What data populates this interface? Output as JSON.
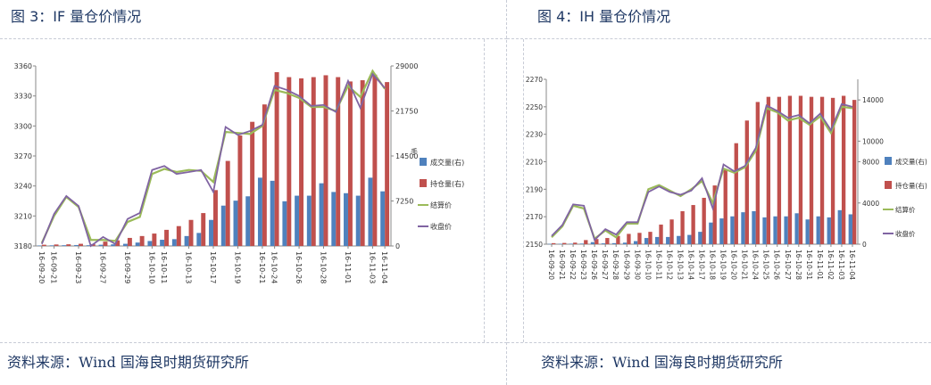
{
  "left_title": "图 3：IF 量仓价情况",
  "right_title": "图 4：IH 量仓价情况",
  "left_source": "资料来源：Wind 国海良时期货研究所",
  "right_source": "资料来源：Wind 国海良时期货研究所",
  "colors": {
    "volume": "#4f81bd",
    "oi": "#c0504d",
    "settle": "#9bbb59",
    "close": "#8064a2"
  },
  "chart_data": [
    {
      "type": "bar",
      "title": "",
      "categories": [
        "16-09-20",
        "16-09-21",
        "16-09-22",
        "16-09-23",
        "16-09-26",
        "16-09-27",
        "16-09-28",
        "16-09-29",
        "16-09-30",
        "16-10-10",
        "16-10-11",
        "16-10-12",
        "16-10-13",
        "16-10-14",
        "16-10-17",
        "16-10-18",
        "16-10-19",
        "16-10-20",
        "16-10-21",
        "16-10-24",
        "16-10-25",
        "16-10-26",
        "16-10-27",
        "16-10-28",
        "16-10-31",
        "16-11-01",
        "16-11-02",
        "16-11-03",
        "16-11-04"
      ],
      "x_tick_labels": [
        "16-09-20",
        "16-09-21",
        "16-09-23",
        "16-09-27",
        "16-09-29",
        "16-10-10",
        "16-10-11",
        "16-10-13",
        "16-10-17",
        "16-10-19",
        "16-10-21",
        "16-10-24",
        "16-10-26",
        "16-10-28",
        "16-11-01",
        "16-11-03",
        "16-11-04"
      ],
      "ylim_left": [
        3180,
        3360
      ],
      "left_ticks": [
        "3180",
        "3210",
        "3240",
        "3270",
        "3300",
        "3330",
        "3360"
      ],
      "ylim_right": [
        0,
        29000
      ],
      "right_ticks": [
        "0",
        "7250",
        "14500",
        "21750",
        "29000"
      ],
      "right_axis_label": "手",
      "legend": [
        "成交量(右)",
        "持仓量(右)",
        "结算价",
        "收盘价"
      ],
      "series": [
        {
          "name": "成交量(右)",
          "axis": "right",
          "kind": "bar",
          "values": [
            80,
            100,
            120,
            150,
            120,
            200,
            260,
            350,
            550,
            800,
            1000,
            1100,
            1600,
            2100,
            4200,
            6500,
            7300,
            8000,
            11000,
            10500,
            7200,
            8100,
            8100,
            10100,
            8700,
            8500,
            8100,
            11000,
            8800
          ]
        },
        {
          "name": "持仓量(右)",
          "axis": "right",
          "kind": "bar",
          "values": [
            200,
            240,
            270,
            350,
            300,
            700,
            900,
            1300,
            1600,
            2000,
            2600,
            3200,
            4200,
            5300,
            9000,
            13700,
            17800,
            20000,
            22800,
            28000,
            27200,
            27000,
            27200,
            27500,
            27200,
            26500,
            26700,
            27600,
            26400
          ]
        },
        {
          "name": "结算价",
          "axis": "left",
          "kind": "line",
          "values": [
            3183,
            3210,
            3229,
            3219,
            3186,
            3186,
            3185,
            3204,
            3209,
            3252,
            3257,
            3254,
            3256,
            3255,
            3244,
            3294,
            3293,
            3292,
            3300,
            3336,
            3333,
            3328,
            3319,
            3319,
            3315,
            3340,
            3329,
            3355,
            3337
          ]
        },
        {
          "name": "收盘价",
          "axis": "left",
          "kind": "line",
          "values": [
            3182,
            3212,
            3230,
            3220,
            3180,
            3189,
            3182,
            3207,
            3213,
            3256,
            3260,
            3252,
            3254,
            3256,
            3234,
            3299,
            3291,
            3295,
            3301,
            3340,
            3336,
            3330,
            3320,
            3321,
            3314,
            3345,
            3318,
            3352,
            3338
          ]
        }
      ]
    },
    {
      "type": "bar",
      "title": "",
      "categories": [
        "16-09-20",
        "16-09-21",
        "16-09-22",
        "16-09-23",
        "16-09-26",
        "16-09-27",
        "16-09-28",
        "16-09-29",
        "16-09-30",
        "16-10-10",
        "16-10-11",
        "16-10-12",
        "16-10-13",
        "16-10-14",
        "16-10-17",
        "16-10-18",
        "16-10-19",
        "16-10-20",
        "16-10-21",
        "16-10-24",
        "16-10-25",
        "16-10-26",
        "16-10-27",
        "16-10-28",
        "16-10-31",
        "16-11-01",
        "16-11-02",
        "16-11-03",
        "16-11-04"
      ],
      "x_tick_labels": [
        "16-09-20",
        "16-09-21",
        "16-09-22",
        "16-09-23",
        "16-09-26",
        "16-09-27",
        "16-09-28",
        "16-09-29",
        "16-09-30",
        "16-10-10",
        "16-10-11",
        "16-10-12",
        "16-10-13",
        "16-10-14",
        "16-10-17",
        "16-10-18",
        "16-10-19",
        "16-10-20",
        "16-10-21",
        "16-10-24",
        "16-10-25",
        "16-10-26",
        "16-10-27",
        "16-10-28",
        "16-10-31",
        "16-11-01",
        "16-11-02",
        "16-11-03",
        "16-11-04"
      ],
      "ylim_left": [
        2150,
        2270
      ],
      "left_ticks": [
        "2150",
        "2170",
        "2190",
        "2210",
        "2230",
        "2250",
        "2270"
      ],
      "ylim_right": [
        0,
        16000
      ],
      "right_ticks": [
        "0",
        "4000",
        "8000",
        "10000",
        "14000"
      ],
      "right_axis_label": "",
      "legend": [
        "成交量(右)",
        "持仓量(右)",
        "结算价",
        "收盘价"
      ],
      "series": [
        {
          "name": "成交量(右)",
          "axis": "right",
          "kind": "bar",
          "values": [
            30,
            40,
            50,
            60,
            200,
            80,
            100,
            150,
            300,
            600,
            700,
            700,
            800,
            900,
            1200,
            2100,
            2500,
            2700,
            3100,
            3200,
            2600,
            2700,
            2700,
            3000,
            2400,
            2700,
            2600,
            3300,
            2900
          ]
        },
        {
          "name": "持仓量(右)",
          "axis": "right",
          "kind": "bar",
          "values": [
            100,
            120,
            150,
            400,
            500,
            600,
            800,
            1000,
            1100,
            1200,
            1900,
            2400,
            3200,
            3800,
            4500,
            5700,
            7300,
            9800,
            12000,
            13800,
            14300,
            14300,
            14400,
            14400,
            14300,
            14300,
            14200,
            14400,
            14000
          ]
        },
        {
          "name": "结算价",
          "axis": "left",
          "kind": "line",
          "values": [
            2155,
            2163,
            2178,
            2176,
            2154,
            2160,
            2155,
            2165,
            2165,
            2190,
            2193,
            2189,
            2185,
            2190,
            2196,
            2180,
            2205,
            2202,
            2206,
            2218,
            2249,
            2246,
            2240,
            2242,
            2237,
            2243,
            2231,
            2250,
            2249
          ]
        },
        {
          "name": "收盘价",
          "axis": "left",
          "kind": "line",
          "values": [
            2156,
            2164,
            2179,
            2178,
            2153,
            2161,
            2157,
            2166,
            2166,
            2188,
            2192,
            2188,
            2186,
            2189,
            2198,
            2176,
            2208,
            2203,
            2207,
            2220,
            2251,
            2247,
            2242,
            2244,
            2238,
            2245,
            2233,
            2252,
            2250
          ]
        }
      ]
    }
  ]
}
